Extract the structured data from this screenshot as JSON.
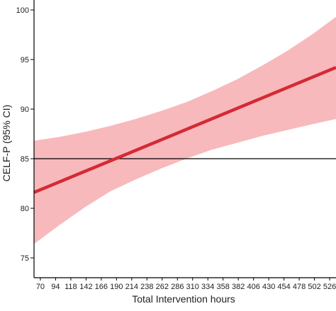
{
  "chart_data": {
    "type": "line",
    "title": "",
    "xlabel": "Total Intervention hours",
    "ylabel": "CELF-P (95% CI)",
    "xlim": [
      60,
      536
    ],
    "ylim": [
      73,
      101
    ],
    "x_ticks": [
      70,
      94,
      118,
      142,
      166,
      190,
      214,
      238,
      262,
      286,
      310,
      334,
      358,
      382,
      406,
      430,
      454,
      478,
      502,
      526
    ],
    "y_ticks": [
      75,
      80,
      85,
      90,
      95,
      100
    ],
    "grid": false,
    "legend": "none",
    "reference_line": {
      "y": 85,
      "color": "#000000"
    },
    "series": [
      {
        "kind": "fit",
        "color": "#d42a35",
        "x": [
          60,
          536
        ],
        "y": [
          81.6,
          94.2
        ]
      }
    ],
    "confidence_band": {
      "color": "#f7b9bb",
      "x": [
        60,
        100,
        140,
        180,
        220,
        260,
        300,
        340,
        380,
        420,
        460,
        500,
        536
      ],
      "upper": [
        86.8,
        87.2,
        87.7,
        88.3,
        89.0,
        89.8,
        90.7,
        91.8,
        93.0,
        94.4,
        95.9,
        97.6,
        99.3
      ],
      "lower": [
        76.4,
        78.3,
        80.1,
        81.7,
        82.9,
        84.0,
        85.0,
        85.9,
        86.6,
        87.3,
        87.9,
        88.5,
        89.0
      ]
    }
  }
}
